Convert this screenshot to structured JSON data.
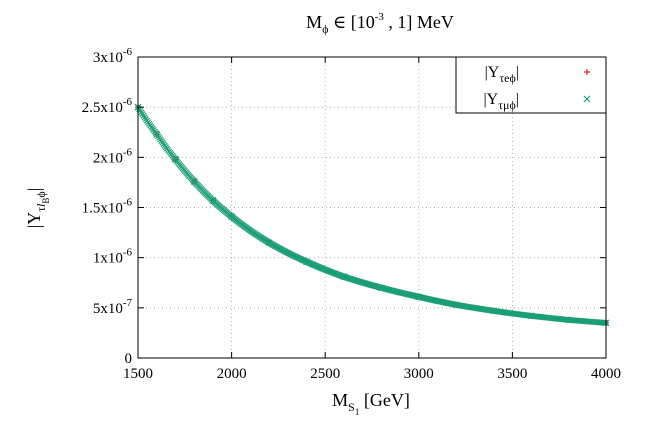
{
  "chart_data": {
    "type": "scatter",
    "title": {
      "main": "M",
      "sub": "ϕ",
      "mid": " ∈ [10",
      "sup": "-3",
      "end": " , 1] MeV"
    },
    "xlabel": {
      "main": "M",
      "sub": "S",
      "sub2": "1",
      "end": " [GeV]"
    },
    "ylabel": {
      "open": "|Y",
      "sub": "τ",
      "subItalic": "l",
      "sub2": "B",
      "subEnd": "ϕ",
      "close": "|"
    },
    "xlim": [
      1500,
      4000
    ],
    "ylim": [
      0,
      3e-06
    ],
    "xticks": [
      {
        "value": 1500,
        "label": "1500"
      },
      {
        "value": 2000,
        "label": "2000"
      },
      {
        "value": 2500,
        "label": "2500"
      },
      {
        "value": 3000,
        "label": "3000"
      },
      {
        "value": 3500,
        "label": "3500"
      },
      {
        "value": 4000,
        "label": "4000"
      }
    ],
    "yticks": [
      {
        "value": 0,
        "label": "0",
        "sup": ""
      },
      {
        "value": 5e-07,
        "label": "5x10",
        "sup": "-7"
      },
      {
        "value": 1e-06,
        "label": "1x10",
        "sup": "-6"
      },
      {
        "value": 1.5e-06,
        "label": "1.5x10",
        "sup": "-6"
      },
      {
        "value": 2e-06,
        "label": "2x10",
        "sup": "-6"
      },
      {
        "value": 2.5e-06,
        "label": "2.5x10",
        "sup": "-6"
      },
      {
        "value": 3e-06,
        "label": "3x10",
        "sup": "-6"
      }
    ],
    "grid": true,
    "legend_position": "top-right",
    "series": [
      {
        "name": {
          "open": "|Y",
          "sub": "τeϕ",
          "close": "|"
        },
        "marker": "+",
        "color": "#e41a1c",
        "x": [
          1500,
          1600,
          1700,
          1800,
          1900,
          2000,
          2200,
          2400,
          2600,
          2800,
          3000,
          3200,
          3400,
          3600,
          3800,
          4000
        ],
        "y": [
          2.5e-06,
          2.23e-06,
          1.98e-06,
          1.76e-06,
          1.57e-06,
          1.41e-06,
          1.15e-06,
          9.6e-07,
          8.1e-07,
          7e-07,
          6.1e-07,
          5.3e-07,
          4.7e-07,
          4.2e-07,
          3.8e-07,
          3.5e-07
        ]
      },
      {
        "name": {
          "open": "|Y",
          "sub": "τμϕ",
          "close": "|"
        },
        "marker": "x",
        "color": "#1b9e77",
        "x": [
          1500,
          1600,
          1700,
          1800,
          1900,
          2000,
          2200,
          2400,
          2600,
          2800,
          3000,
          3200,
          3400,
          3600,
          3800,
          4000
        ],
        "y": [
          2.5e-06,
          2.23e-06,
          1.98e-06,
          1.76e-06,
          1.57e-06,
          1.41e-06,
          1.15e-06,
          9.6e-07,
          8.1e-07,
          7e-07,
          6.1e-07,
          5.3e-07,
          4.7e-07,
          4.2e-07,
          3.8e-07,
          3.5e-07
        ]
      }
    ]
  }
}
